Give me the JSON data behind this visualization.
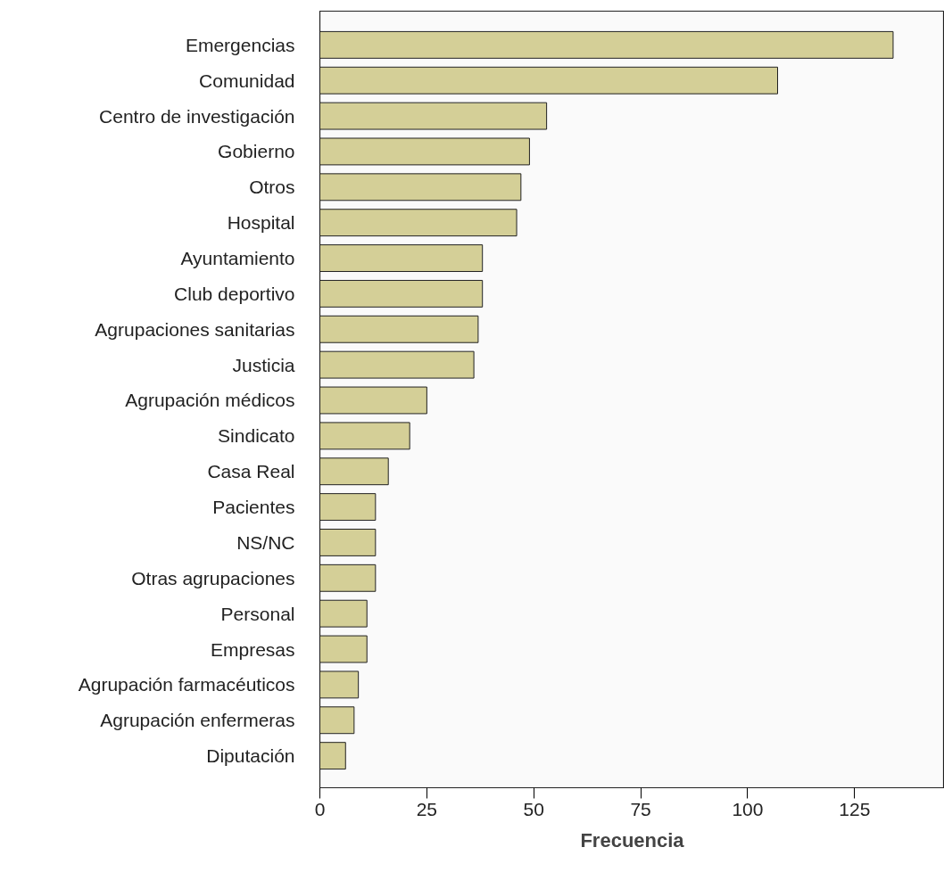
{
  "chart_data": {
    "type": "bar",
    "orientation": "horizontal",
    "xlabel": "Frecuencia",
    "categories": [
      "Emergencias",
      "Comunidad",
      "Centro de investigación",
      "Gobierno",
      "Otros",
      "Hospital",
      "Ayuntamiento",
      "Club deportivo",
      "Agrupaciones sanitarias",
      "Justicia",
      "Agrupación médicos",
      "Sindicato",
      "Casa Real",
      "Pacientes",
      "NS/NC",
      "Otras agrupaciones",
      "Personal",
      "Empresas",
      "Agrupación farmacéuticos",
      "Agrupación enfermeras",
      "Diputación"
    ],
    "values": [
      134,
      107,
      53,
      49,
      47,
      46,
      38,
      38,
      37,
      36,
      25,
      21,
      16,
      13,
      13,
      13,
      11,
      11,
      9,
      8,
      6
    ],
    "color": "#d4cf97",
    "xlim": [
      0,
      146
    ],
    "xticks": [
      0,
      25,
      50,
      75,
      100,
      125
    ],
    "grid": false
  }
}
